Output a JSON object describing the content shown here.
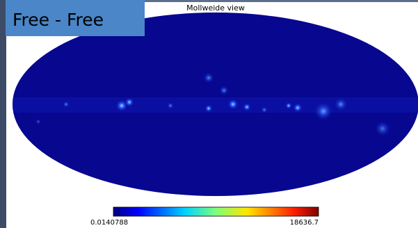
{
  "badge": "Free - Free",
  "title": "Mollweide view",
  "colorbar": {
    "min_label": "0.0140788",
    "max_label": "18636.7"
  }
}
